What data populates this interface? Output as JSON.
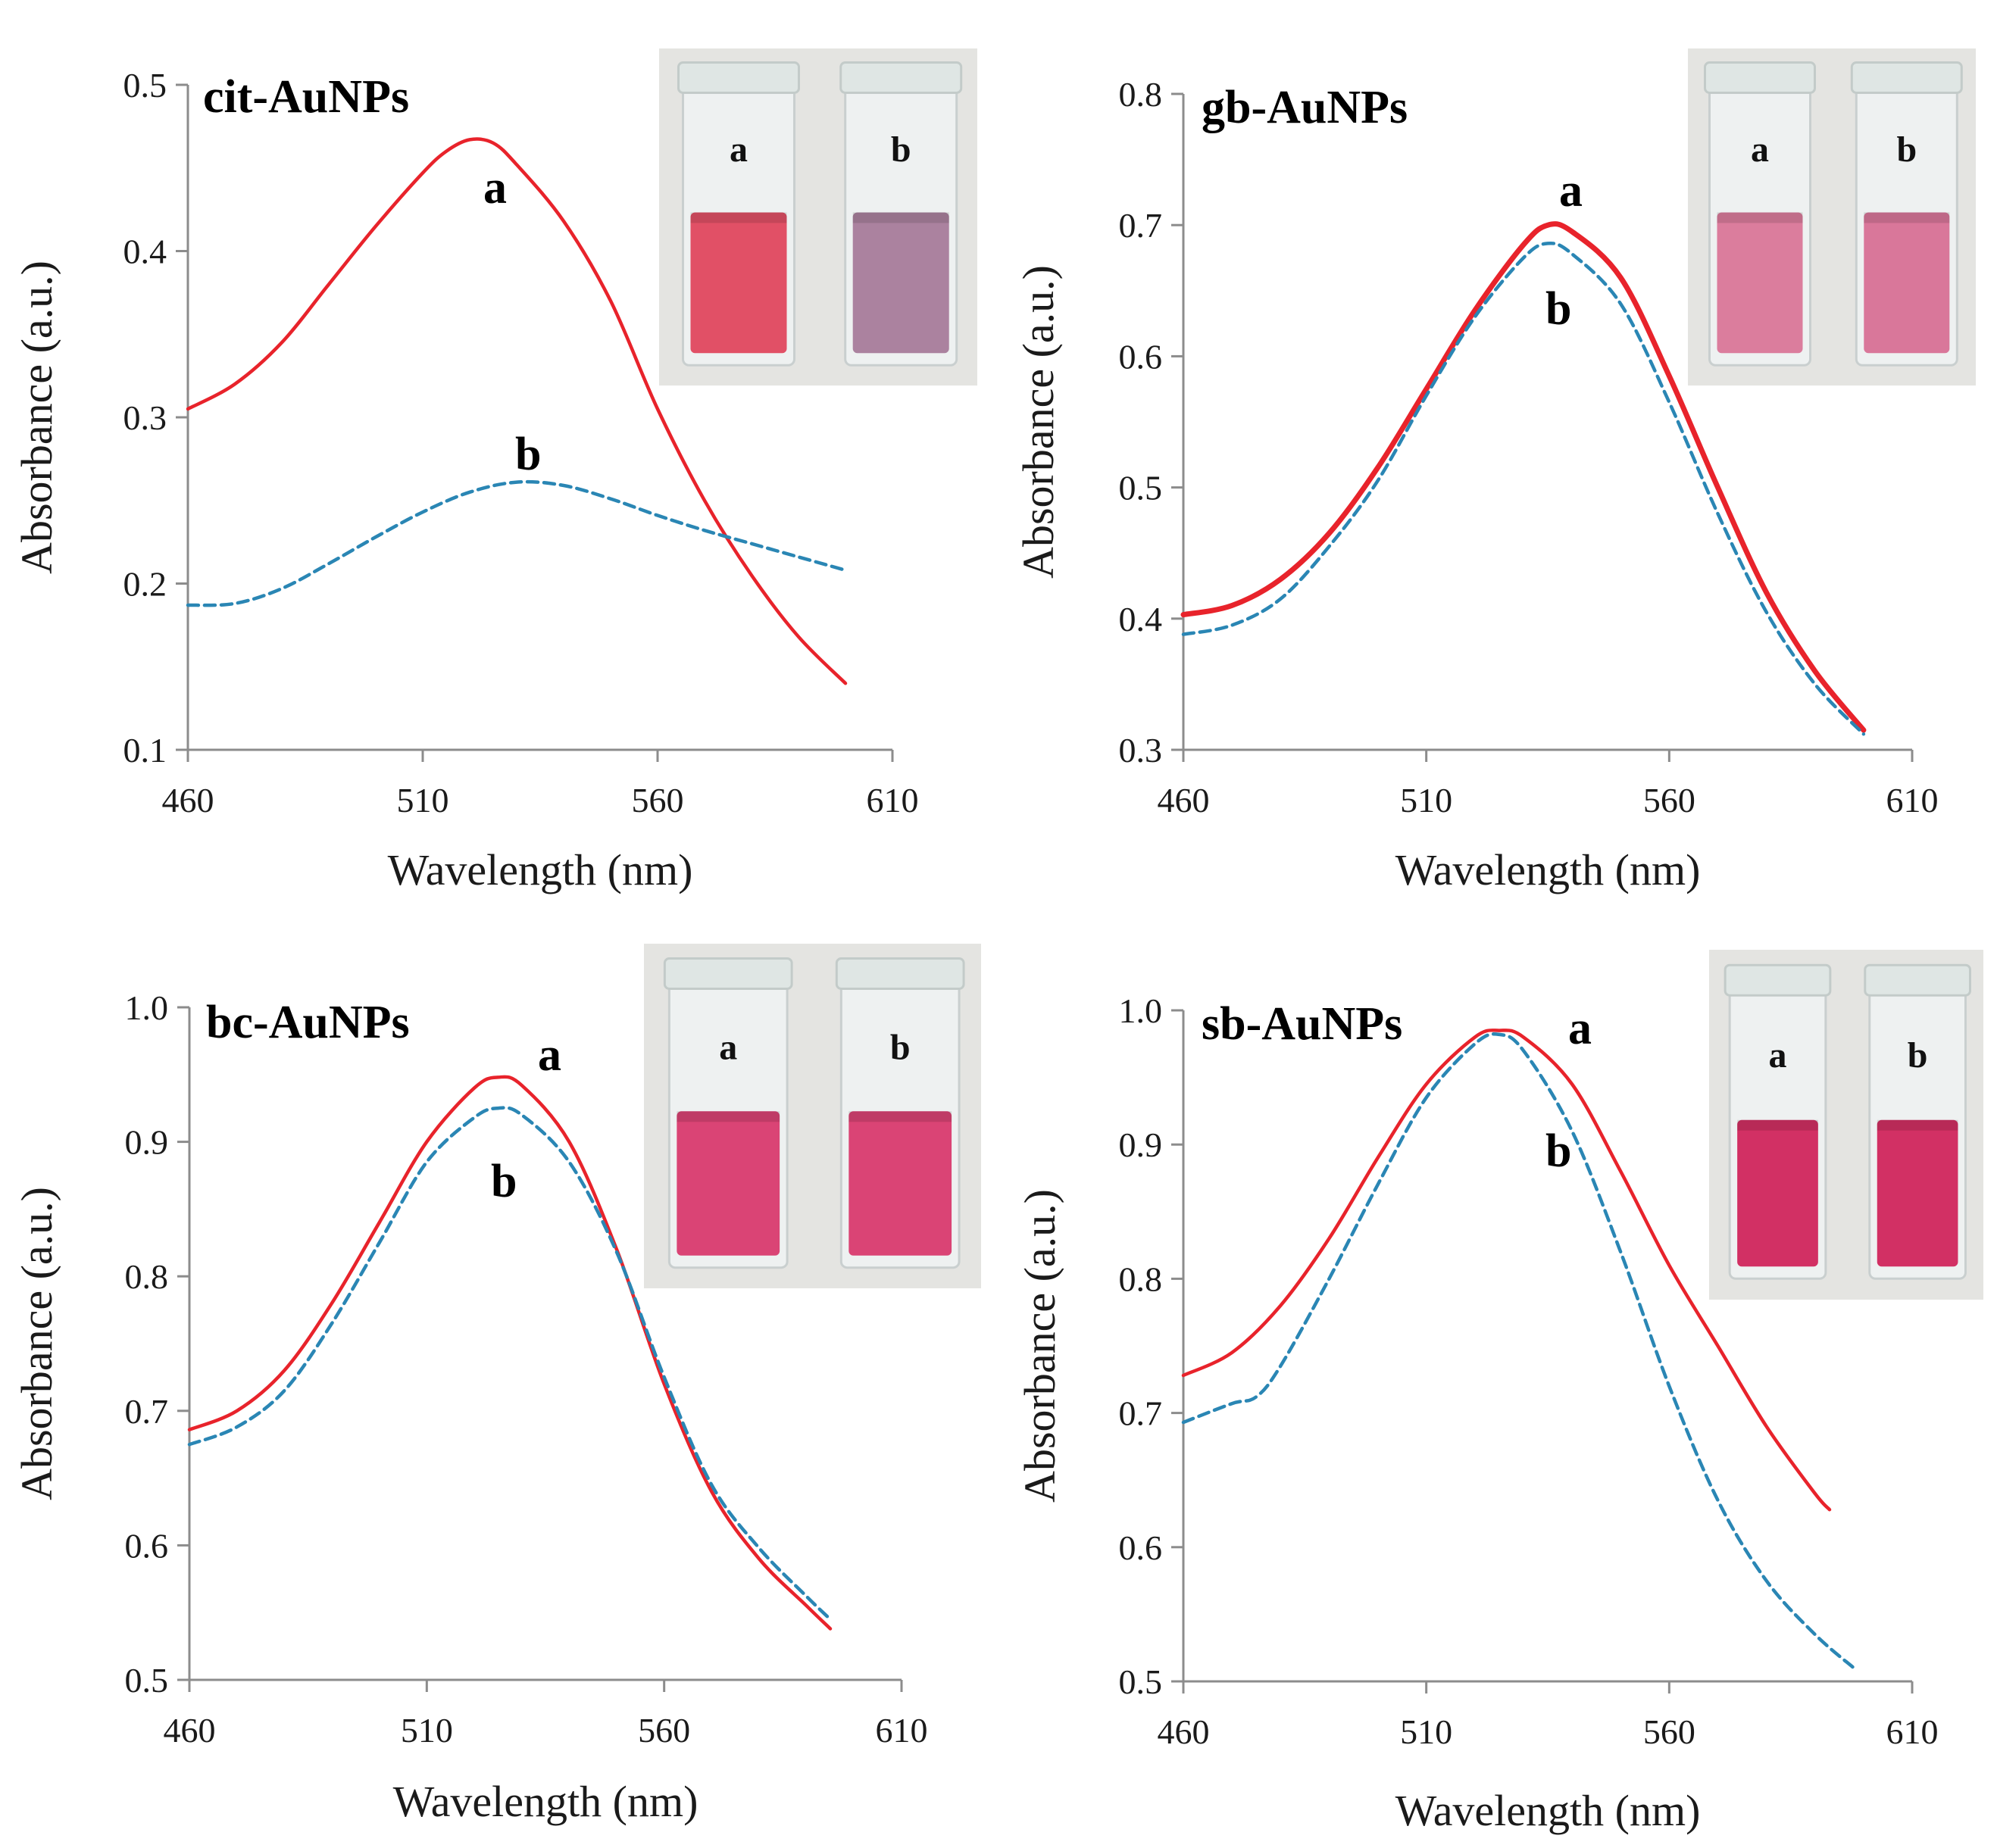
{
  "figure": {
    "colors": {
      "series_a": "#e8232b",
      "series_b": "#2a86b4",
      "axis": "#8c8c8c"
    }
  },
  "chart_data": [
    {
      "type": "line",
      "title": "cit-AuNPs",
      "xlabel": "Wavelength (nm)",
      "ylabel": "Absorbance (a.u.)",
      "xlim": [
        460,
        610
      ],
      "ylim": [
        0.1,
        0.5
      ],
      "xticks": [
        "460",
        "510",
        "560",
        "610"
      ],
      "yticks": [
        "0.1",
        "0.2",
        "0.3",
        "0.4",
        "0.5"
      ],
      "series": [
        {
          "name": "a",
          "style": "solid",
          "x": [
            460,
            470,
            480,
            490,
            500,
            510,
            515,
            520,
            525,
            530,
            540,
            550,
            560,
            570,
            580,
            590,
            600
          ],
          "y": [
            0.305,
            0.32,
            0.345,
            0.38,
            0.415,
            0.447,
            0.46,
            0.467,
            0.465,
            0.452,
            0.418,
            0.37,
            0.305,
            0.25,
            0.205,
            0.168,
            0.14
          ]
        },
        {
          "name": "b",
          "style": "dashed",
          "x": [
            460,
            470,
            480,
            490,
            500,
            510,
            520,
            530,
            540,
            550,
            560,
            570,
            580,
            590,
            600
          ],
          "y": [
            0.187,
            0.188,
            0.197,
            0.212,
            0.228,
            0.243,
            0.255,
            0.261,
            0.259,
            0.251,
            0.241,
            0.232,
            0.224,
            0.216,
            0.208
          ]
        }
      ],
      "annotations": [
        "a",
        "b"
      ],
      "inset": {
        "label_a": "a",
        "label_b": "b",
        "color_a": "#e0425a",
        "color_b": "#a57898"
      }
    },
    {
      "type": "line",
      "title": "gb-AuNPs",
      "xlabel": "Wavelength (nm)",
      "ylabel": "Absorbance (a.u.)",
      "xlim": [
        460,
        610
      ],
      "ylim": [
        0.3,
        0.8
      ],
      "xticks": [
        "460",
        "510",
        "560",
        "610"
      ],
      "yticks": [
        "0.3",
        "0.4",
        "0.5",
        "0.6",
        "0.7",
        "0.8"
      ],
      "series": [
        {
          "name": "a",
          "style": "solid",
          "x": [
            460,
            470,
            480,
            490,
            500,
            510,
            520,
            530,
            535,
            540,
            550,
            560,
            570,
            580,
            590,
            600
          ],
          "y": [
            0.403,
            0.41,
            0.43,
            0.465,
            0.515,
            0.575,
            0.635,
            0.685,
            0.7,
            0.695,
            0.66,
            0.585,
            0.5,
            0.42,
            0.36,
            0.315
          ]
        },
        {
          "name": "b",
          "style": "dashed",
          "x": [
            460,
            470,
            480,
            490,
            500,
            510,
            520,
            530,
            535,
            540,
            550,
            560,
            570,
            580,
            590,
            600
          ],
          "y": [
            0.388,
            0.395,
            0.415,
            0.455,
            0.505,
            0.57,
            0.63,
            0.675,
            0.686,
            0.678,
            0.64,
            0.565,
            0.48,
            0.405,
            0.35,
            0.312
          ]
        }
      ],
      "annotations": [
        "a",
        "b"
      ],
      "inset": {
        "label_a": "a",
        "label_b": "b",
        "color_a": "#d97396",
        "color_b": "#d76d92"
      }
    },
    {
      "type": "line",
      "title": "bc-AuNPs",
      "xlabel": "Wavelength (nm)",
      "ylabel": "Absorbance (a.u.)",
      "xlim": [
        460,
        610
      ],
      "ylim": [
        0.5,
        1.0
      ],
      "xticks": [
        "460",
        "510",
        "560",
        "610"
      ],
      "yticks": [
        "0.5",
        "0.6",
        "0.7",
        "0.8",
        "0.9",
        "1.0"
      ],
      "series": [
        {
          "name": "a",
          "style": "solid",
          "x": [
            460,
            470,
            480,
            490,
            500,
            510,
            520,
            525,
            530,
            540,
            550,
            560,
            570,
            580,
            590,
            595
          ],
          "y": [
            0.686,
            0.7,
            0.73,
            0.78,
            0.84,
            0.9,
            0.94,
            0.948,
            0.942,
            0.9,
            0.82,
            0.72,
            0.64,
            0.59,
            0.555,
            0.538
          ]
        },
        {
          "name": "b",
          "style": "dashed",
          "x": [
            460,
            470,
            480,
            490,
            500,
            510,
            520,
            525,
            530,
            540,
            550,
            560,
            570,
            580,
            590,
            595
          ],
          "y": [
            0.675,
            0.688,
            0.715,
            0.765,
            0.825,
            0.885,
            0.918,
            0.925,
            0.92,
            0.885,
            0.818,
            0.725,
            0.645,
            0.598,
            0.562,
            0.545
          ]
        }
      ],
      "annotations": [
        "a",
        "b"
      ],
      "inset": {
        "label_a": "a",
        "label_b": "b",
        "color_a": "#d8356a",
        "color_b": "#d8356a"
      }
    },
    {
      "type": "line",
      "title": "sb-AuNPs",
      "xlabel": "Wavelength (nm)",
      "ylabel": "Absorbance (a.u.)",
      "xlim": [
        460,
        610
      ],
      "ylim": [
        0.5,
        1.0
      ],
      "xticks": [
        "460",
        "510",
        "560",
        "610"
      ],
      "yticks": [
        "0.5",
        "0.6",
        "0.7",
        "0.8",
        "0.9",
        "1.0"
      ],
      "series": [
        {
          "name": "a",
          "style": "solid",
          "x": [
            460,
            470,
            480,
            490,
            500,
            510,
            520,
            525,
            530,
            540,
            550,
            560,
            570,
            580,
            590,
            593
          ],
          "y": [
            0.728,
            0.745,
            0.78,
            0.83,
            0.89,
            0.945,
            0.98,
            0.985,
            0.98,
            0.945,
            0.88,
            0.81,
            0.75,
            0.69,
            0.64,
            0.628
          ]
        },
        {
          "name": "b",
          "style": "dashed",
          "x": [
            460,
            470,
            475,
            480,
            490,
            500,
            510,
            520,
            525,
            530,
            540,
            550,
            560,
            570,
            580,
            590,
            598
          ],
          "y": [
            0.693,
            0.707,
            0.712,
            0.735,
            0.8,
            0.87,
            0.935,
            0.975,
            0.982,
            0.97,
            0.91,
            0.82,
            0.72,
            0.635,
            0.575,
            0.535,
            0.51
          ]
        }
      ],
      "annotations": [
        "a",
        "b"
      ],
      "inset": {
        "label_a": "a",
        "label_b": "b",
        "color_a": "#cf1f58",
        "color_b": "#cf1f58"
      }
    }
  ]
}
